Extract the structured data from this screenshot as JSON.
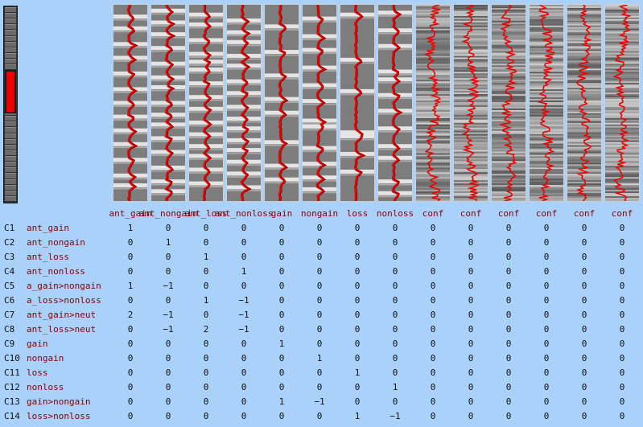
{
  "slider": {
    "segments": 34,
    "position": 0.42
  },
  "columns": [
    {
      "label": "ant_gain",
      "kind": "stim",
      "events": [
        0.06,
        0.12,
        0.2,
        0.27,
        0.35,
        0.43,
        0.5,
        0.57,
        0.64,
        0.71,
        0.79,
        0.87,
        0.92
      ]
    },
    {
      "label": "ant_nongain",
      "kind": "stim",
      "events": [
        0.03,
        0.09,
        0.15,
        0.22,
        0.3,
        0.37,
        0.42,
        0.5,
        0.56,
        0.61,
        0.68,
        0.75,
        0.83,
        0.9,
        0.95
      ]
    },
    {
      "label": "ant_loss",
      "kind": "stim",
      "events": [
        0.05,
        0.1,
        0.18,
        0.25,
        0.29,
        0.33,
        0.4,
        0.47,
        0.53,
        0.6,
        0.66,
        0.72,
        0.77,
        0.84,
        0.91
      ]
    },
    {
      "label": "ant_nonloss",
      "kind": "stim",
      "events": [
        0.08,
        0.14,
        0.19,
        0.26,
        0.31,
        0.39,
        0.45,
        0.52,
        0.58,
        0.63,
        0.69,
        0.74,
        0.8,
        0.86,
        0.93
      ]
    },
    {
      "label": "gain",
      "kind": "stim",
      "events": [
        0.11,
        0.24,
        0.36,
        0.48,
        0.55,
        0.7,
        0.82,
        0.89
      ]
    },
    {
      "label": "nongain",
      "kind": "stim",
      "events": [
        0.07,
        0.16,
        0.23,
        0.32,
        0.41,
        0.49,
        0.59,
        0.62,
        0.73,
        0.81,
        0.88,
        0.94
      ]
    },
    {
      "label": "loss",
      "kind": "stim",
      "events": [
        0.05,
        0.28,
        0.44,
        0.65,
        0.67,
        0.76,
        0.85
      ]
    },
    {
      "label": "nonloss",
      "kind": "stim",
      "events": [
        0.04,
        0.13,
        0.21,
        0.34,
        0.38,
        0.46,
        0.54,
        0.63,
        0.72,
        0.78,
        0.9,
        0.96
      ]
    },
    {
      "label": "conf",
      "kind": "conf",
      "events": []
    },
    {
      "label": "conf",
      "kind": "conf",
      "events": []
    },
    {
      "label": "conf",
      "kind": "conf",
      "events": []
    },
    {
      "label": "conf",
      "kind": "conf",
      "events": []
    },
    {
      "label": "conf",
      "kind": "conf",
      "events": []
    },
    {
      "label": "conf",
      "kind": "conf",
      "events": []
    }
  ],
  "contrasts": [
    {
      "id": "C1",
      "name": "ant_gain",
      "weights": [
        1,
        0,
        0,
        0,
        0,
        0,
        0,
        0,
        0,
        0,
        0,
        0,
        0,
        0
      ]
    },
    {
      "id": "C2",
      "name": "ant_nongain",
      "weights": [
        0,
        1,
        0,
        0,
        0,
        0,
        0,
        0,
        0,
        0,
        0,
        0,
        0,
        0
      ]
    },
    {
      "id": "C3",
      "name": "ant_loss",
      "weights": [
        0,
        0,
        1,
        0,
        0,
        0,
        0,
        0,
        0,
        0,
        0,
        0,
        0,
        0
      ]
    },
    {
      "id": "C4",
      "name": "ant_nonloss",
      "weights": [
        0,
        0,
        0,
        1,
        0,
        0,
        0,
        0,
        0,
        0,
        0,
        0,
        0,
        0
      ]
    },
    {
      "id": "C5",
      "name": "a_gain>nongain",
      "weights": [
        1,
        -1,
        0,
        0,
        0,
        0,
        0,
        0,
        0,
        0,
        0,
        0,
        0,
        0
      ]
    },
    {
      "id": "C6",
      "name": "a_loss>nonloss",
      "weights": [
        0,
        0,
        1,
        -1,
        0,
        0,
        0,
        0,
        0,
        0,
        0,
        0,
        0,
        0
      ]
    },
    {
      "id": "C7",
      "name": "ant_gain>neut",
      "weights": [
        2,
        -1,
        0,
        -1,
        0,
        0,
        0,
        0,
        0,
        0,
        0,
        0,
        0,
        0
      ]
    },
    {
      "id": "C8",
      "name": "ant_loss>neut",
      "weights": [
        0,
        -1,
        2,
        -1,
        0,
        0,
        0,
        0,
        0,
        0,
        0,
        0,
        0,
        0
      ]
    },
    {
      "id": "C9",
      "name": "gain",
      "weights": [
        0,
        0,
        0,
        0,
        1,
        0,
        0,
        0,
        0,
        0,
        0,
        0,
        0,
        0
      ]
    },
    {
      "id": "C10",
      "name": "nongain",
      "weights": [
        0,
        0,
        0,
        0,
        0,
        1,
        0,
        0,
        0,
        0,
        0,
        0,
        0,
        0
      ]
    },
    {
      "id": "C11",
      "name": "loss",
      "weights": [
        0,
        0,
        0,
        0,
        0,
        0,
        1,
        0,
        0,
        0,
        0,
        0,
        0,
        0
      ]
    },
    {
      "id": "C12",
      "name": "nonloss",
      "weights": [
        0,
        0,
        0,
        0,
        0,
        0,
        0,
        1,
        0,
        0,
        0,
        0,
        0,
        0
      ]
    },
    {
      "id": "C13",
      "name": "gain>nongain",
      "weights": [
        0,
        0,
        0,
        0,
        1,
        -1,
        0,
        0,
        0,
        0,
        0,
        0,
        0,
        0
      ]
    },
    {
      "id": "C14",
      "name": "loss>nonloss",
      "weights": [
        0,
        0,
        0,
        0,
        0,
        0,
        1,
        -1,
        0,
        0,
        0,
        0,
        0,
        0
      ]
    }
  ],
  "colors": {
    "background": "#a9d1f9",
    "label": "#8b0000",
    "trace": "#ee0000"
  }
}
